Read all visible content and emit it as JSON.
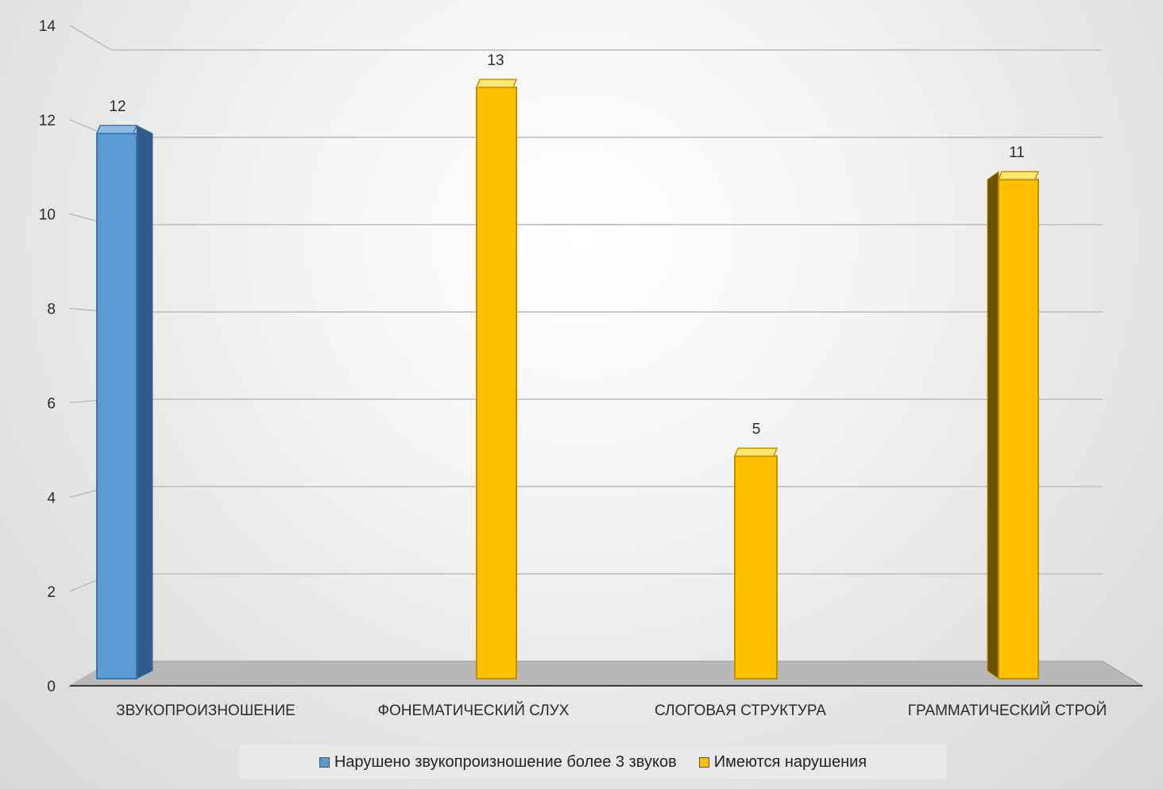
{
  "chart_data": {
    "type": "bar",
    "categories": [
      "ЗВУКОПРОИЗНОШЕНИЕ",
      "ФОНЕМАТИЧЕСКИЙ СЛУХ",
      "СЛОГОВАЯ СТРУКТУРА",
      "ГРАММАТИЧЕСКИЙ СТРОЙ"
    ],
    "series": [
      {
        "name": "Нарушено звукопроизношение более 3 звуков",
        "values": [
          12,
          null,
          null,
          null
        ],
        "color": "#5b9bd5"
      },
      {
        "name": "Имеются нарушения",
        "values": [
          null,
          13,
          5,
          11
        ],
        "color": "#ffc000"
      }
    ],
    "data_labels": [
      "12",
      "13",
      "5",
      "11"
    ],
    "ylim": [
      0,
      14
    ],
    "yticks": [
      "0",
      "2",
      "4",
      "6",
      "8",
      "10",
      "12",
      "14"
    ],
    "grid": true,
    "legend_position": "bottom",
    "style": "3d-column"
  }
}
